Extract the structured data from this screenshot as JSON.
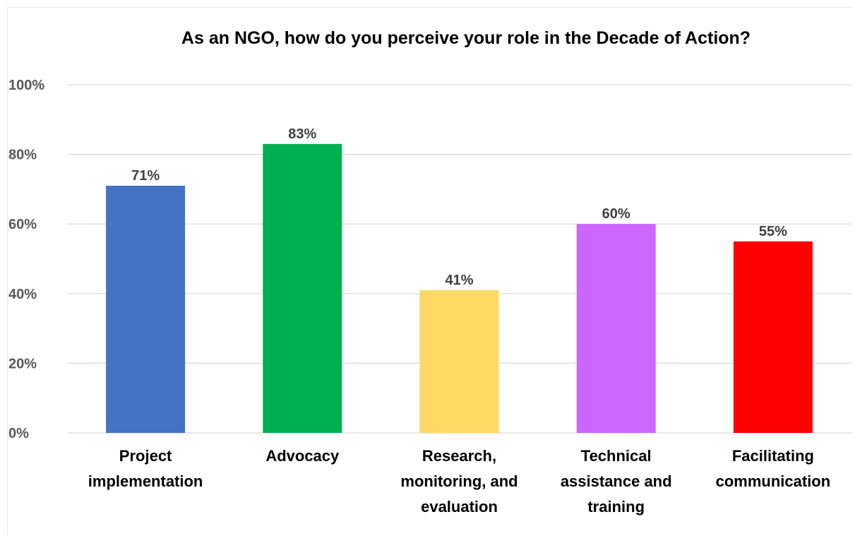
{
  "chart_data": {
    "type": "bar",
    "title": "As an NGO, how do you perceive your role in the Decade of Action?",
    "categories": [
      [
        "Project",
        "implementation"
      ],
      [
        "Advocacy"
      ],
      [
        "Research,",
        "monitoring, and",
        "evaluation"
      ],
      [
        "Technical",
        "assistance and",
        "training"
      ],
      [
        "Facilitating",
        "communication"
      ]
    ],
    "values": [
      71,
      83,
      41,
      60,
      55
    ],
    "data_labels": [
      "71%",
      "83%",
      "41%",
      "60%",
      "55%"
    ],
    "colors": [
      "#4472C4",
      "#00B050",
      "#FFD966",
      "#CC66FF",
      "#FF0000"
    ],
    "ylim": [
      0,
      100
    ],
    "yticks": [
      "0%",
      "20%",
      "40%",
      "60%",
      "80%",
      "100%"
    ],
    "grid": true,
    "xlabel": "",
    "ylabel": ""
  }
}
